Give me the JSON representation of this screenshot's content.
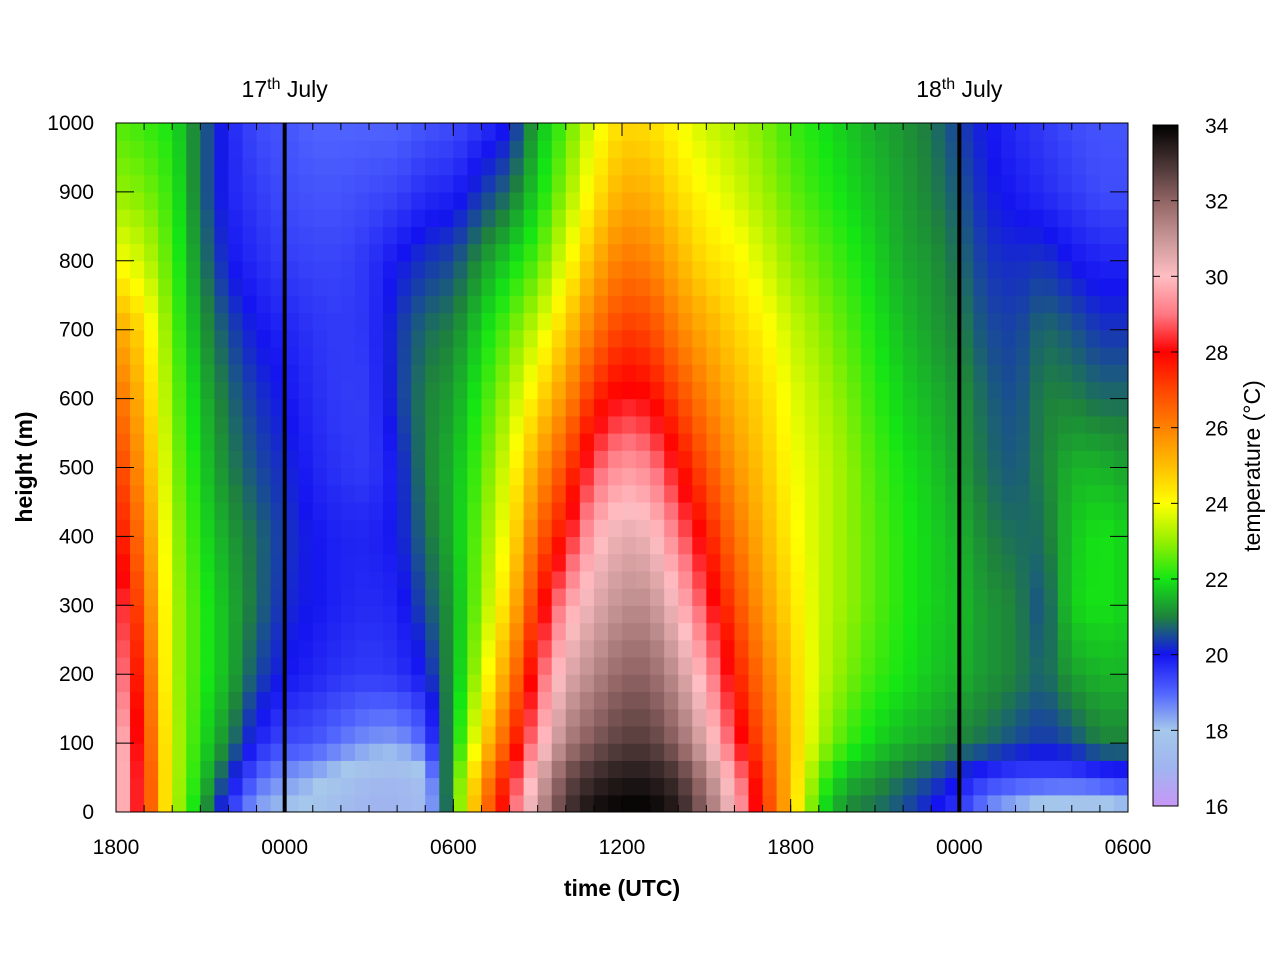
{
  "chart_data": {
    "type": "heatmap",
    "title": "",
    "xlabel": "time (UTC)",
    "ylabel": "height (m)",
    "colorbar_label": "temperature (°C)",
    "x_unit": "hours since 1800 UTC 16 July",
    "x_range_hours": [
      0,
      36
    ],
    "x_ticks": [
      {
        "hours": 0,
        "label": "1800"
      },
      {
        "hours": 6,
        "label": "0000"
      },
      {
        "hours": 12,
        "label": "0600"
      },
      {
        "hours": 18,
        "label": "1200"
      },
      {
        "hours": 24,
        "label": "1800"
      },
      {
        "hours": 30,
        "label": "0000"
      },
      {
        "hours": 36,
        "label": "0600"
      }
    ],
    "ylim": [
      0,
      1000
    ],
    "y_ticks": [
      0,
      100,
      200,
      300,
      400,
      500,
      600,
      700,
      800,
      900,
      1000
    ],
    "clim": [
      16,
      34
    ],
    "colorbar_ticks": [
      16,
      18,
      20,
      22,
      24,
      26,
      28,
      30,
      32,
      34
    ],
    "day_markers": [
      {
        "hours": 6,
        "day": "17",
        "sup": "th",
        "month": "July"
      },
      {
        "hours": 30,
        "day": "18",
        "sup": "th",
        "month": "July"
      }
    ],
    "heights_m": [
      0,
      50,
      100,
      200,
      300,
      400,
      500,
      600,
      700,
      800,
      900,
      1000
    ],
    "series": [
      {
        "hours": 0,
        "temps": [
          30.5,
          30.5,
          30.5,
          29.5,
          29.0,
          28.0,
          27.3,
          26.5,
          25.5,
          24.0,
          23.0,
          22.5
        ]
      },
      {
        "hours": 1,
        "temps": [
          27.5,
          27.5,
          27.3,
          27.0,
          26.5,
          26.0,
          25.5,
          25.0,
          24.5,
          23.5,
          22.8,
          22.3
        ]
      },
      {
        "hours": 2,
        "temps": [
          23.5,
          23.5,
          23.5,
          23.3,
          23.3,
          23.2,
          23.0,
          22.8,
          22.6,
          22.4,
          22.2,
          22.0
        ]
      },
      {
        "hours": 3,
        "temps": [
          21.5,
          21.8,
          22.0,
          22.2,
          22.2,
          22.0,
          21.8,
          21.6,
          21.3,
          21.0,
          20.8,
          20.8
        ]
      },
      {
        "hours": 4,
        "temps": [
          19.5,
          20.3,
          21.0,
          21.5,
          21.5,
          21.3,
          21.0,
          20.8,
          20.5,
          20.0,
          19.8,
          19.8
        ]
      },
      {
        "hours": 5,
        "temps": [
          18.3,
          19.0,
          19.8,
          20.5,
          20.8,
          20.8,
          20.5,
          20.3,
          20.0,
          19.7,
          19.5,
          19.3
        ]
      },
      {
        "hours": 6,
        "temps": [
          18.0,
          18.5,
          19.3,
          20.0,
          20.2,
          20.3,
          20.2,
          20.0,
          19.8,
          19.5,
          19.3,
          19.2
        ]
      },
      {
        "hours": 7,
        "temps": [
          17.8,
          18.2,
          19.2,
          19.8,
          20.0,
          20.0,
          19.8,
          19.7,
          19.6,
          19.4,
          19.2,
          19.0
        ]
      },
      {
        "hours": 8,
        "temps": [
          17.3,
          17.8,
          18.8,
          19.6,
          19.8,
          19.8,
          19.6,
          19.5,
          19.5,
          19.4,
          19.2,
          19.0
        ]
      },
      {
        "hours": 9,
        "temps": [
          17.0,
          17.3,
          18.5,
          19.5,
          19.7,
          19.8,
          19.5,
          19.5,
          19.6,
          19.6,
          19.3,
          19.0
        ]
      },
      {
        "hours": 10,
        "temps": [
          17.0,
          17.2,
          18.4,
          19.6,
          19.8,
          20.0,
          20.0,
          20.3,
          20.3,
          20.0,
          19.4,
          19.0
        ]
      },
      {
        "hours": 11,
        "temps": [
          17.3,
          17.6,
          19.0,
          20.0,
          20.5,
          20.8,
          21.0,
          21.0,
          20.8,
          20.3,
          19.7,
          19.2
        ]
      },
      {
        "hours": 12,
        "temps": [
          22.0,
          22.0,
          21.5,
          21.3,
          21.3,
          21.5,
          21.5,
          21.3,
          21.0,
          20.5,
          19.8,
          19.3
        ]
      },
      {
        "hours": 13,
        "temps": [
          26.0,
          25.5,
          24.5,
          23.5,
          23.0,
          22.8,
          22.5,
          22.2,
          21.8,
          21.2,
          20.3,
          19.6
        ]
      },
      {
        "hours": 14,
        "temps": [
          28.5,
          28.0,
          27.0,
          25.8,
          24.8,
          24.2,
          23.8,
          23.2,
          22.6,
          21.8,
          20.8,
          20.0
        ]
      },
      {
        "hours": 15,
        "temps": [
          31.0,
          30.5,
          29.5,
          28.5,
          27.5,
          26.5,
          25.5,
          24.5,
          23.5,
          22.5,
          21.8,
          21.5
        ]
      },
      {
        "hours": 16,
        "temps": [
          33.0,
          32.5,
          31.5,
          30.5,
          29.5,
          28.0,
          27.0,
          25.8,
          24.8,
          23.8,
          23.0,
          22.5
        ]
      },
      {
        "hours": 17,
        "temps": [
          33.8,
          33.2,
          32.3,
          31.3,
          30.5,
          29.8,
          28.7,
          27.5,
          26.2,
          25.2,
          24.3,
          23.8
        ]
      },
      {
        "hours": 18,
        "temps": [
          34.0,
          33.5,
          32.8,
          32.0,
          31.2,
          30.5,
          29.5,
          28.2,
          27.2,
          26.2,
          25.3,
          24.6
        ]
      },
      {
        "hours": 19,
        "temps": [
          34.0,
          33.5,
          32.8,
          32.0,
          31.2,
          30.3,
          29.2,
          28.0,
          27.0,
          26.0,
          25.2,
          24.5
        ]
      },
      {
        "hours": 20,
        "temps": [
          33.5,
          33.0,
          32.0,
          31.0,
          30.0,
          29.0,
          28.0,
          27.0,
          26.0,
          25.2,
          24.5,
          24.0
        ]
      },
      {
        "hours": 21,
        "temps": [
          32.0,
          31.5,
          30.5,
          29.5,
          28.5,
          27.7,
          26.8,
          26.0,
          25.3,
          24.5,
          24.0,
          23.5
        ]
      },
      {
        "hours": 22,
        "temps": [
          30.0,
          29.5,
          28.5,
          27.7,
          27.0,
          26.3,
          25.7,
          25.2,
          24.7,
          24.2,
          23.6,
          23.2
        ]
      },
      {
        "hours": 23,
        "temps": [
          27.5,
          27.2,
          26.8,
          26.2,
          25.6,
          25.2,
          24.9,
          24.6,
          24.2,
          23.6,
          23.1,
          22.8
        ]
      },
      {
        "hours": 24,
        "temps": [
          25.0,
          25.0,
          25.0,
          24.8,
          24.5,
          24.2,
          24.0,
          23.8,
          23.5,
          23.0,
          22.6,
          22.3
        ]
      },
      {
        "hours": 25,
        "temps": [
          22.0,
          22.5,
          23.2,
          23.5,
          23.5,
          23.5,
          23.5,
          23.3,
          23.0,
          22.6,
          22.2,
          22.0
        ]
      },
      {
        "hours": 26,
        "temps": [
          21.0,
          21.5,
          22.3,
          22.8,
          23.0,
          23.0,
          23.0,
          22.8,
          22.5,
          22.2,
          21.9,
          21.7
        ]
      },
      {
        "hours": 27,
        "temps": [
          20.8,
          21.2,
          21.8,
          22.3,
          22.5,
          22.5,
          22.4,
          22.2,
          22.0,
          21.8,
          21.6,
          21.4
        ]
      },
      {
        "hours": 28,
        "temps": [
          20.5,
          20.8,
          21.5,
          22.0,
          22.1,
          22.1,
          22.0,
          21.8,
          21.6,
          21.4,
          21.3,
          21.2
        ]
      },
      {
        "hours": 29,
        "temps": [
          20.0,
          20.5,
          21.3,
          21.7,
          21.8,
          21.8,
          21.7,
          21.5,
          21.3,
          21.2,
          21.0,
          20.9
        ]
      },
      {
        "hours": 30,
        "temps": [
          19.5,
          20.0,
          21.0,
          21.5,
          21.6,
          21.5,
          21.3,
          21.2,
          21.0,
          20.8,
          20.6,
          20.4
        ]
      },
      {
        "hours": 31,
        "temps": [
          18.5,
          19.5,
          20.8,
          21.2,
          21.2,
          21.0,
          20.8,
          20.7,
          20.5,
          20.3,
          20.1,
          20.0
        ]
      },
      {
        "hours": 32,
        "temps": [
          18.0,
          19.3,
          20.5,
          21.0,
          21.0,
          20.8,
          20.6,
          20.5,
          20.4,
          20.2,
          19.9,
          19.7
        ]
      },
      {
        "hours": 33,
        "temps": [
          17.5,
          19.3,
          20.3,
          20.7,
          20.5,
          20.8,
          21.0,
          21.0,
          20.8,
          20.3,
          19.7,
          19.5
        ]
      },
      {
        "hours": 34,
        "temps": [
          17.3,
          19.3,
          20.5,
          21.3,
          21.8,
          21.7,
          21.5,
          21.0,
          20.6,
          20.0,
          19.5,
          19.3
        ]
      },
      {
        "hours": 35,
        "temps": [
          17.2,
          19.5,
          21.0,
          21.5,
          22.0,
          22.0,
          21.5,
          20.8,
          20.3,
          19.8,
          19.3,
          19.2
        ]
      },
      {
        "hours": 36,
        "temps": [
          17.8,
          19.6,
          21.0,
          21.5,
          21.8,
          21.8,
          21.3,
          20.8,
          20.3,
          19.8,
          19.3,
          19.2
        ]
      }
    ]
  }
}
